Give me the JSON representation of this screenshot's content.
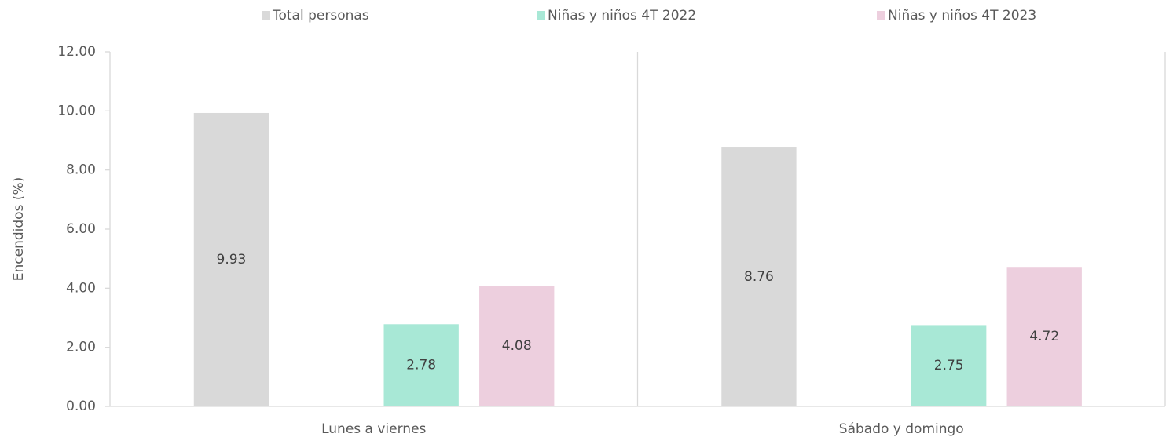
{
  "chart_data": {
    "type": "bar",
    "y_label": "Encendidos (%)",
    "categories": [
      "Lunes a viernes",
      "Sábado y domingo"
    ],
    "series": [
      {
        "name": "Total personas",
        "color": "#d9d9d9",
        "values": [
          9.93,
          8.76
        ]
      },
      {
        "name": "Niñas y niños 4T 2022",
        "color": "#a8e8d6",
        "values": [
          2.78,
          2.75
        ]
      },
      {
        "name": "Niñas y niños 4T 2023",
        "color": "#edcfde",
        "values": [
          4.08,
          4.72
        ]
      }
    ],
    "ylim": [
      0,
      12
    ],
    "yticks": [
      {
        "value": 0,
        "label": "0.00"
      },
      {
        "value": 2,
        "label": "2.00"
      },
      {
        "value": 4,
        "label": "4.00"
      },
      {
        "value": 6,
        "label": "6.00"
      },
      {
        "value": 8,
        "label": "8.00"
      },
      {
        "value": 10,
        "label": "10.00"
      },
      {
        "value": 12,
        "label": "12.00"
      }
    ],
    "legend": "top"
  }
}
